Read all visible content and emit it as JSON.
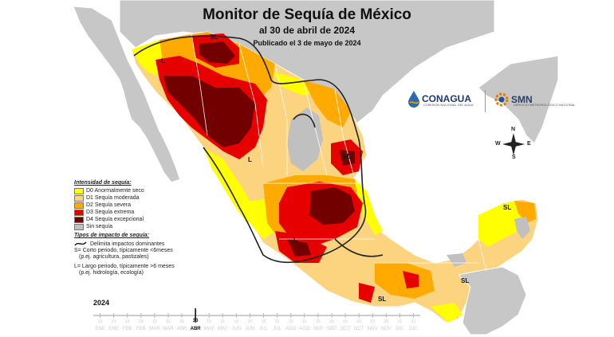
{
  "title": "Monitor de Sequía de México",
  "date_line": "al 30 de abril de 2024",
  "published": "Publicado el 3 de mayo de 2024",
  "legend": {
    "intensity_heading": "Intensidad de sequía:",
    "categories": [
      {
        "label": "D0 Anormalmente seco",
        "color": "#ffff00"
      },
      {
        "label": "D1 Sequía moderada",
        "color": "#fcd37f"
      },
      {
        "label": "D2 Sequía severa",
        "color": "#ffaa00"
      },
      {
        "label": "D3 Sequía extrema",
        "color": "#e60000"
      },
      {
        "label": "D4 Sequía excepcional",
        "color": "#730000"
      },
      {
        "label": "Sin sequía",
        "color": "#c0c0c0"
      }
    ],
    "impact_heading": "Tipos de impacto de sequía:",
    "line_label": "Delimita impactos dominantes",
    "short_line1": "S= Corto periodo, típicamente <6meses",
    "short_line2": "(p.ej. agricultura, pastizales)",
    "long_line1": "L= Largo periodo, típicamente >6 meses",
    "long_line2": "(p.ej. hidrología, ecología)"
  },
  "logos": {
    "conagua": "CONAGUA",
    "conagua_sub": "COMISIÓN NACIONAL DEL AGUA",
    "smn": "SMN",
    "smn_sub": "SERVICIO METEOROLÓGICO NACIONAL"
  },
  "compass": {
    "n": "N",
    "s": "S",
    "e": "E",
    "w": "W"
  },
  "region_labels": [
    "SL",
    "L",
    "SL",
    "L",
    "SL",
    "SL",
    "SL",
    "L"
  ],
  "timeline": {
    "year": "2024",
    "months": [
      "ENE",
      "ENE",
      "FEB",
      "FEB",
      "MAR",
      "MAR",
      "ABR",
      "ABR",
      "MAY",
      "MAY",
      "JUN",
      "JUN",
      "JUL",
      "JUL",
      "AGO",
      "AGO",
      "SEP",
      "SEP",
      "OCT",
      "OCT",
      "NOV",
      "NOV",
      "DIC",
      "DIC"
    ],
    "days": [
      "15",
      "31",
      "15",
      "29",
      "15",
      "31",
      "15",
      "30",
      "15",
      "31",
      "15",
      "30",
      "15",
      "31",
      "15",
      "31",
      "15",
      "30",
      "15",
      "31",
      "15",
      "30",
      "15",
      "31"
    ],
    "current_day": "30",
    "current_month": "ABR"
  },
  "colors": {
    "land": "#c7c7c7",
    "border": "#ffffff",
    "water": "#ffffff",
    "impact_line": "#222222"
  }
}
